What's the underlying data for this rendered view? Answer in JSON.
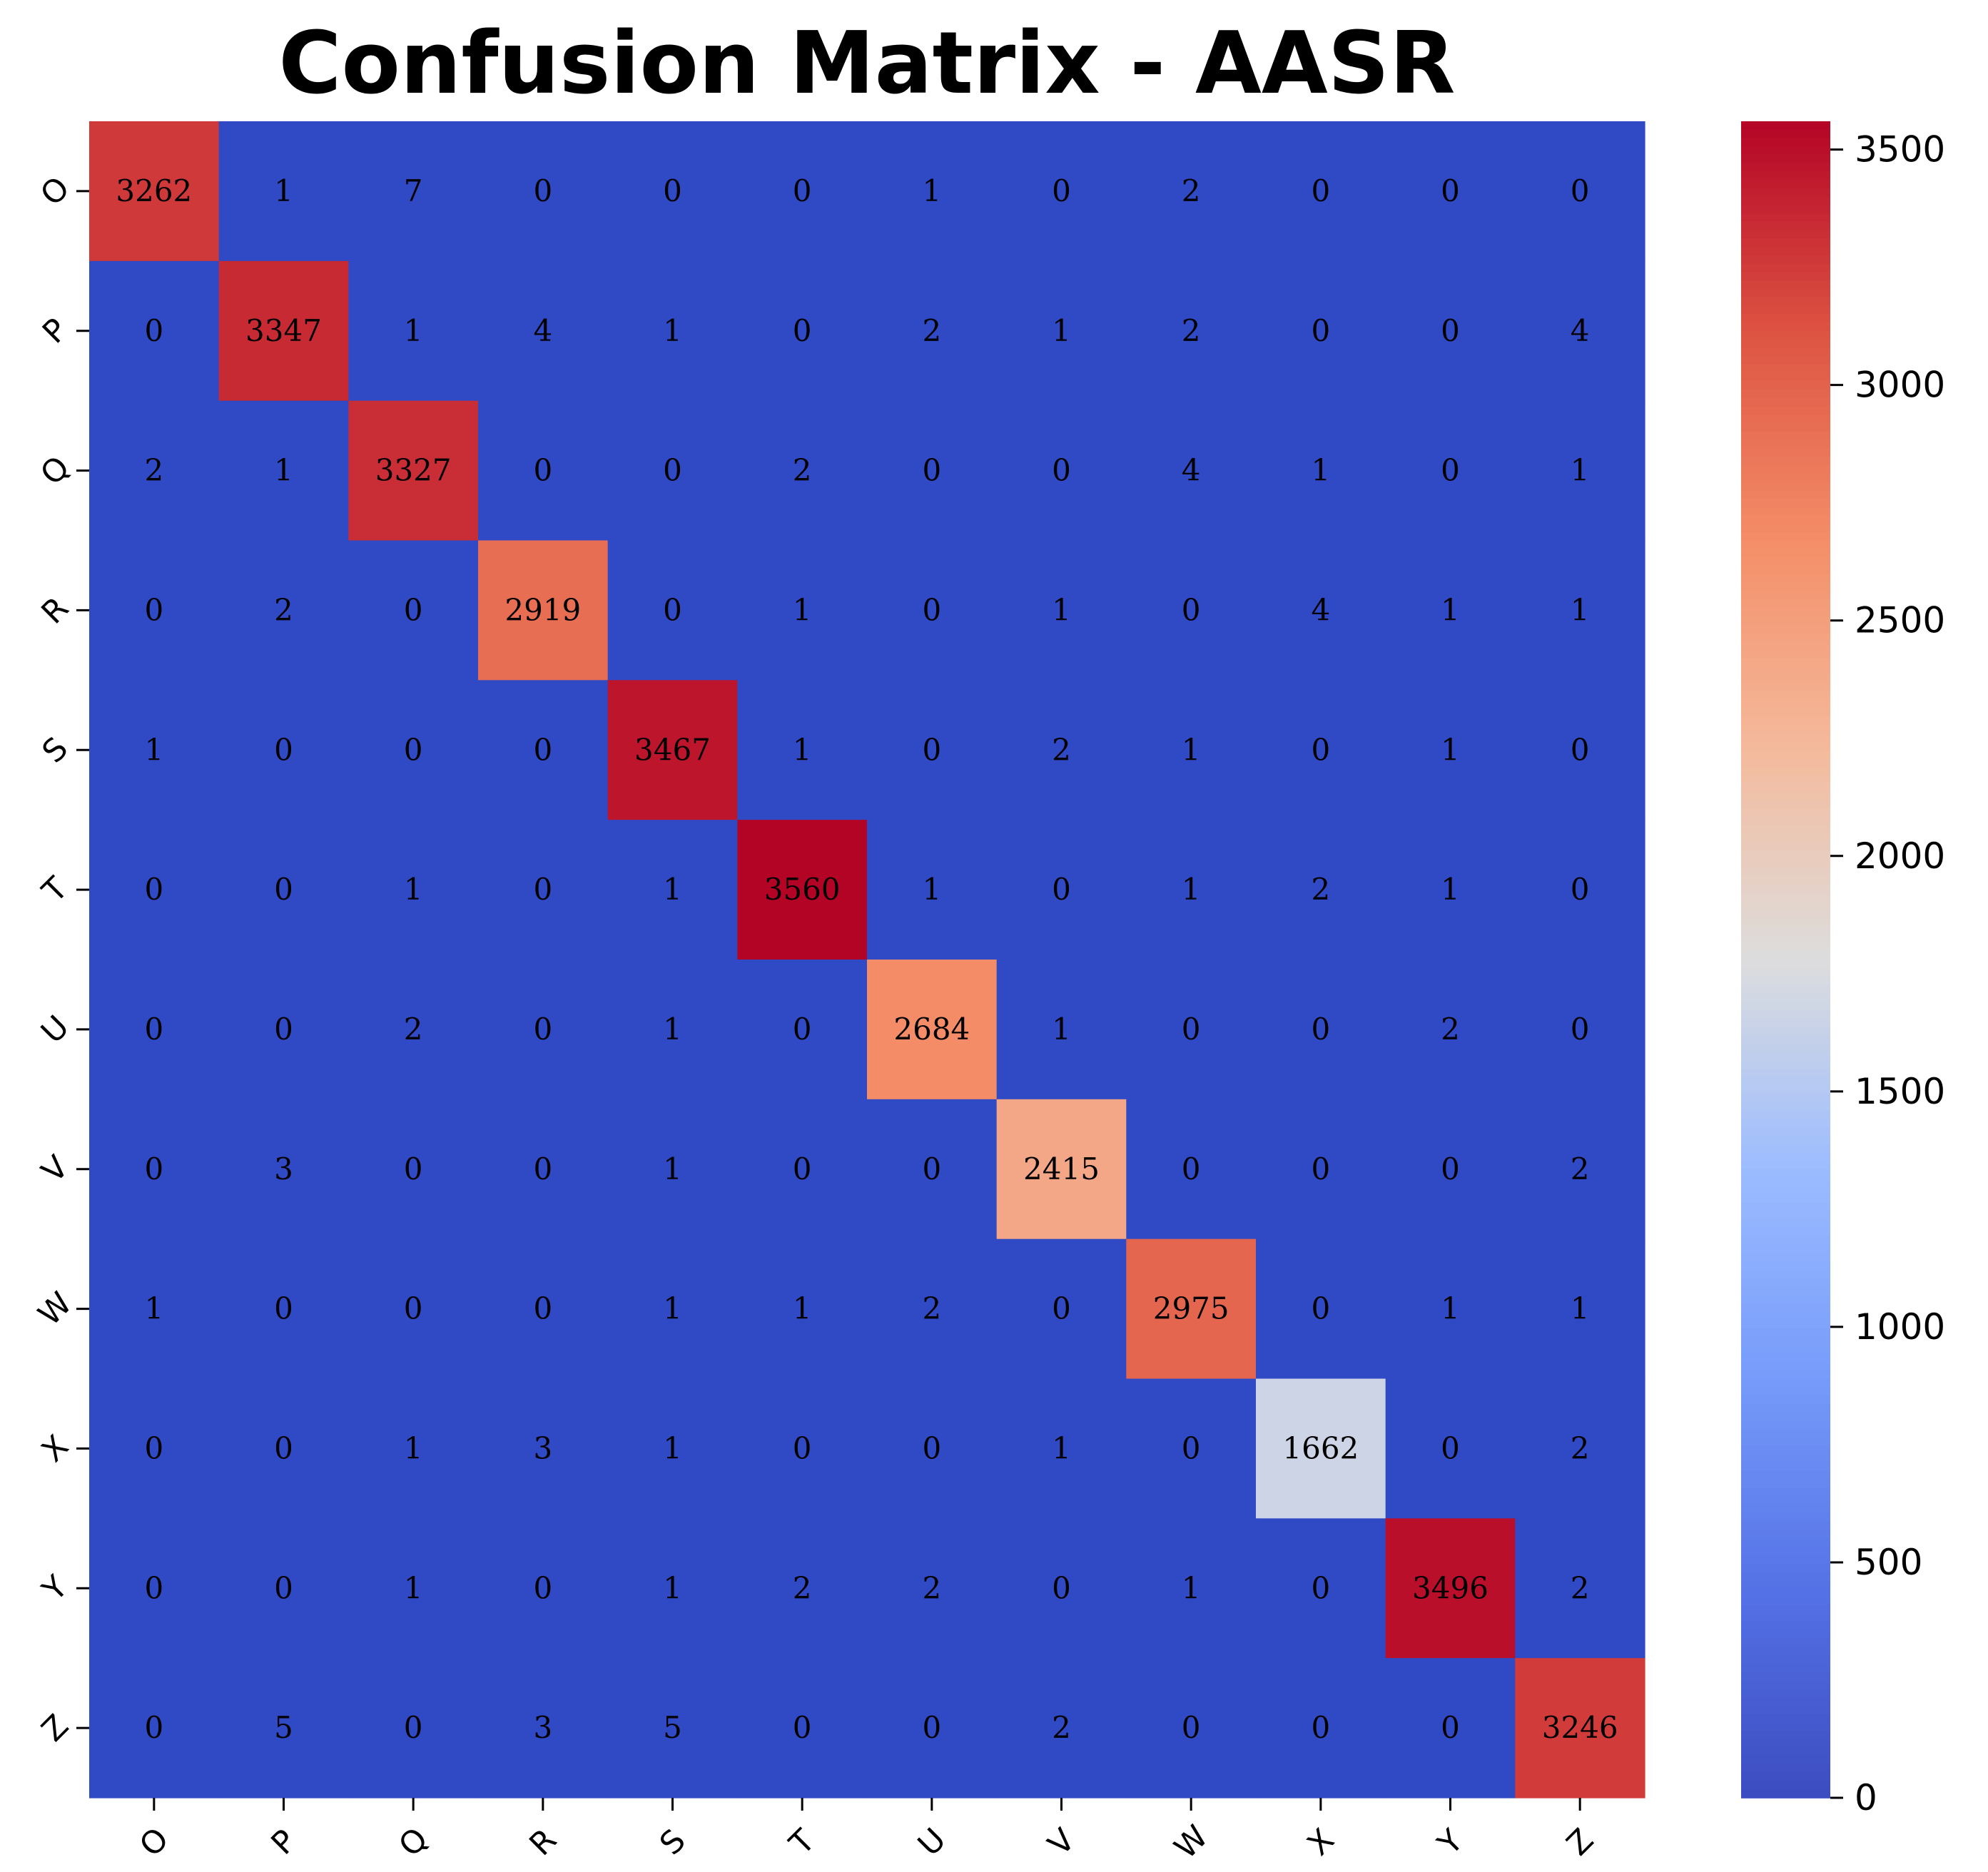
{
  "chart_data": {
    "type": "heatmap",
    "title": "Confusion Matrix - AASR",
    "xlabel": "",
    "ylabel": "",
    "row_labels": [
      "O",
      "P",
      "Q",
      "R",
      "S",
      "T",
      "U",
      "V",
      "W",
      "X",
      "Y",
      "Z"
    ],
    "col_labels": [
      "O",
      "P",
      "Q",
      "R",
      "S",
      "T",
      "U",
      "V",
      "W",
      "X",
      "Y",
      "Z"
    ],
    "matrix": [
      [
        3262,
        1,
        7,
        0,
        0,
        0,
        1,
        0,
        2,
        0,
        0,
        0
      ],
      [
        0,
        3347,
        1,
        4,
        1,
        0,
        2,
        1,
        2,
        0,
        0,
        4
      ],
      [
        2,
        1,
        3327,
        0,
        0,
        2,
        0,
        0,
        4,
        1,
        0,
        1
      ],
      [
        0,
        2,
        0,
        2919,
        0,
        1,
        0,
        1,
        0,
        4,
        1,
        1
      ],
      [
        1,
        0,
        0,
        0,
        3467,
        1,
        0,
        2,
        1,
        0,
        1,
        0
      ],
      [
        0,
        0,
        1,
        0,
        1,
        3560,
        1,
        0,
        1,
        2,
        1,
        0
      ],
      [
        0,
        0,
        2,
        0,
        1,
        0,
        2684,
        1,
        0,
        0,
        2,
        0
      ],
      [
        0,
        3,
        0,
        0,
        1,
        0,
        0,
        2415,
        0,
        0,
        0,
        2
      ],
      [
        1,
        0,
        0,
        0,
        1,
        1,
        2,
        0,
        2975,
        0,
        1,
        1
      ],
      [
        0,
        0,
        1,
        3,
        1,
        0,
        0,
        1,
        0,
        1662,
        0,
        2
      ],
      [
        0,
        0,
        1,
        0,
        1,
        2,
        2,
        0,
        1,
        0,
        3496,
        2
      ],
      [
        0,
        5,
        0,
        3,
        5,
        0,
        0,
        2,
        0,
        0,
        0,
        3246
      ]
    ],
    "colormap": "coolwarm",
    "vmin": 0,
    "vmax": 3560,
    "colorbar_ticks": [
      0,
      500,
      1000,
      1500,
      2000,
      2500,
      3000,
      3500
    ],
    "grid": false,
    "legend": "colorbar-right"
  }
}
